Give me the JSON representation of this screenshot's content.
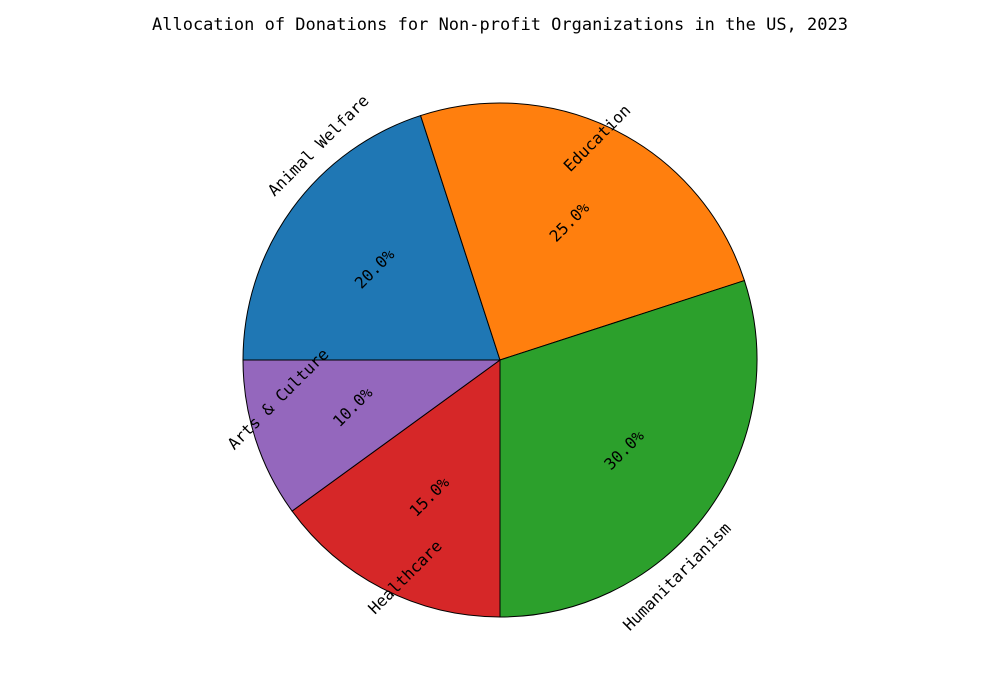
{
  "chart_data": {
    "type": "pie",
    "title": "Allocation of Donations for Non-profit Organizations in the US, 2023",
    "categories": [
      "Animal Welfare",
      "Education",
      "Humanitarianism",
      "Healthcare",
      "Arts & Culture"
    ],
    "values": [
      20,
      25,
      30,
      15,
      10
    ],
    "value_labels": [
      "20.0%",
      "25.0%",
      "30.0%",
      "15.0%",
      "10.0%"
    ],
    "colors": [
      "#1f77b4",
      "#ff7f0e",
      "#2ca02c",
      "#d62728",
      "#9467bd"
    ]
  }
}
